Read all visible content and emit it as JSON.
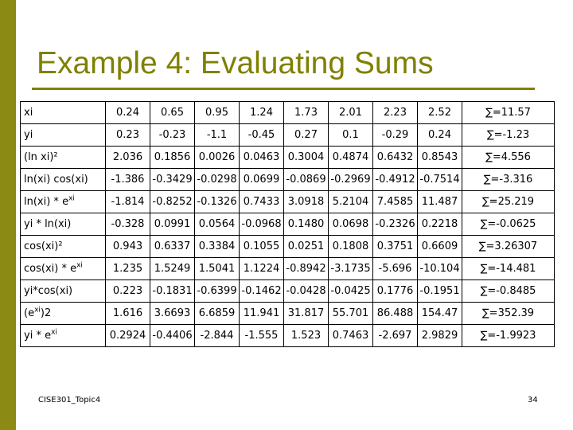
{
  "slide": {
    "title": "Example 4: Evaluating Sums",
    "footer": "CISE301_Topic4",
    "page_number": "34",
    "accent_color": "#808000"
  },
  "table": {
    "rows": [
      {
        "label": "xi",
        "values": [
          "0.24",
          "0.65",
          "0.95",
          "1.24",
          "1.73",
          "2.01",
          "2.23",
          "2.52"
        ],
        "sum": "∑=11.57"
      },
      {
        "label": "yi",
        "values": [
          "0.23",
          "-0.23",
          "-1.1",
          "-0.45",
          "0.27",
          "0.1",
          "-0.29",
          "0.24"
        ],
        "sum": "∑=-1.23"
      },
      {
        "label": "(ln xi)²",
        "values": [
          "2.036",
          "0.1856",
          "0.0026",
          "0.0463",
          "0.3004",
          "0.4874",
          "0.6432",
          "0.8543"
        ],
        "sum": "∑=4.556"
      },
      {
        "label": "ln(xi) cos(xi)",
        "values": [
          "-1.386",
          "-0.3429",
          "-0.0298",
          "0.0699",
          "-0.0869",
          "-0.2969",
          "-0.4912",
          "-0.7514"
        ],
        "sum": "∑=-3.316"
      },
      {
        "label": "ln(xi) * e",
        "label_sup": "xi",
        "values": [
          "-1.814",
          "-0.8252",
          "-0.1326",
          "0.7433",
          "3.0918",
          "5.2104",
          "7.4585",
          "11.487"
        ],
        "sum": "∑=25.219"
      },
      {
        "label": "yi * ln(xi)",
        "values": [
          "-0.328",
          "0.0991",
          "0.0564",
          "-0.0968",
          "0.1480",
          "0.0698",
          "-0.2326",
          "0.2218"
        ],
        "sum": "∑=-0.0625"
      },
      {
        "label": "cos(xi)²",
        "values": [
          "0.943",
          "0.6337",
          "0.3384",
          "0.1055",
          "0.0251",
          "0.1808",
          "0.3751",
          "0.6609"
        ],
        "sum": "∑=3.26307"
      },
      {
        "label": "cos(xi) * e",
        "label_sup": "xi",
        "values": [
          "1.235",
          "1.5249",
          "1.5041",
          "1.1224",
          "-0.8942",
          "-3.1735",
          "-5.696",
          "-10.104"
        ],
        "sum": "∑=-14.481"
      },
      {
        "label": "yi*cos(xi)",
        "values": [
          "0.223",
          "-0.1831",
          "-0.6399",
          "-0.1462",
          "-0.0428",
          "-0.0425",
          "0.1776",
          "-0.1951"
        ],
        "sum": "∑=-0.8485"
      },
      {
        "label": "(e",
        "label_sup": "xi",
        "label_after": ")2",
        "values": [
          "1.616",
          "3.6693",
          "6.6859",
          "11.941",
          "31.817",
          "55.701",
          "86.488",
          "154.47"
        ],
        "sum": "∑=352.39"
      },
      {
        "label": "yi * e",
        "label_sup": "xi",
        "values": [
          "0.2924",
          "-0.4406",
          "-2.844",
          "-1.555",
          "1.523",
          "0.7463",
          "-2.697",
          "2.9829"
        ],
        "sum": "∑=-1.9923"
      }
    ]
  }
}
